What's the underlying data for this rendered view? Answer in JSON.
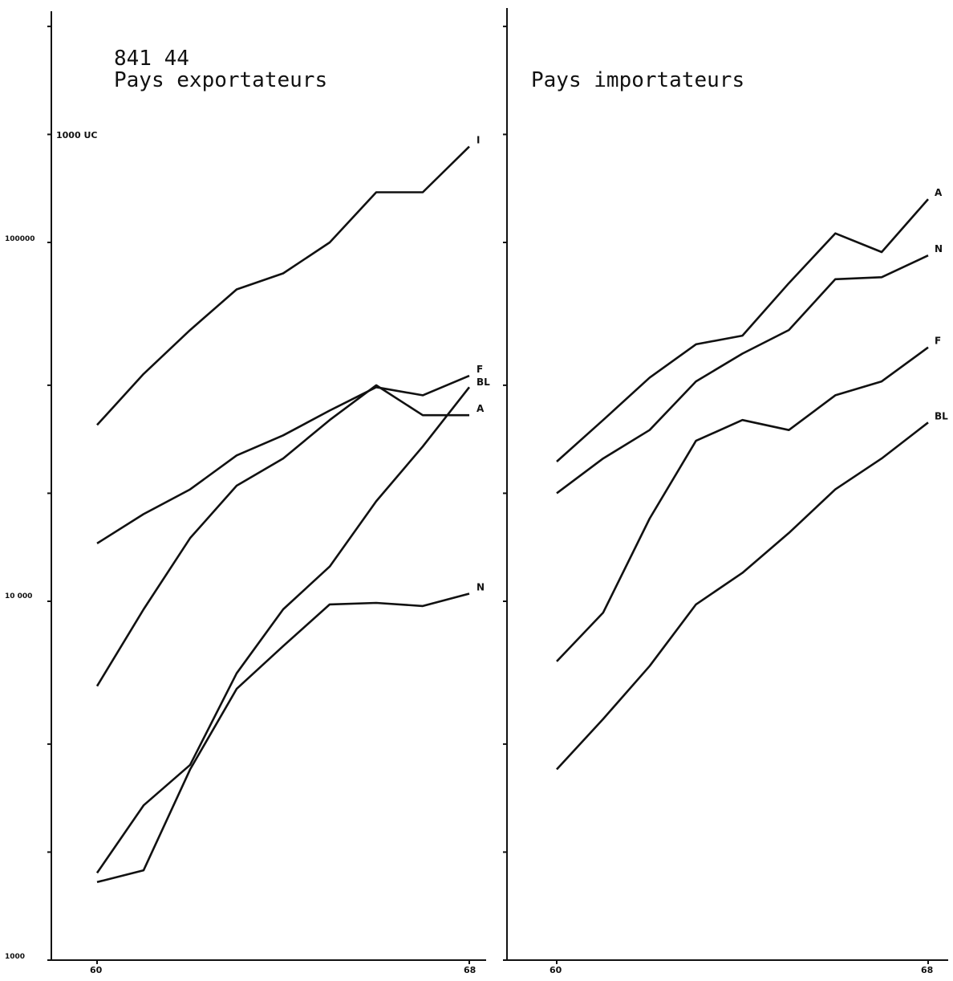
{
  "chart_data": [
    {
      "type": "line",
      "panel": "left",
      "code": "841 44",
      "title": "Pays exportateurs",
      "unit_label": "1000 UC",
      "yscale": "log",
      "ylim": [
        1000,
        1000000
      ],
      "y_tick_labels": [
        "1000",
        "10 000",
        "100000"
      ],
      "x_start_label": "60",
      "x_end_label": "68",
      "xlim": [
        1960,
        1968
      ],
      "x": [
        1960,
        1961,
        1962,
        1963,
        1964,
        1965,
        1966,
        1967,
        1968
      ],
      "series": [
        {
          "name": "I",
          "values": [
            31000,
            43000,
            57000,
            74000,
            82000,
            100000,
            138000,
            138000,
            185000
          ]
        },
        {
          "name": "F",
          "values": [
            14500,
            17500,
            20500,
            25500,
            29000,
            34000,
            39500,
            37500,
            42500
          ]
        },
        {
          "name": "A",
          "values": [
            5800,
            9500,
            15000,
            21000,
            25000,
            32000,
            40000,
            33000,
            33000
          ]
        },
        {
          "name": "BL",
          "values": [
            1750,
            2700,
            3500,
            6300,
            9500,
            12500,
            19000,
            27000,
            39500
          ]
        },
        {
          "name": "N",
          "values": [
            1650,
            1780,
            3400,
            5700,
            7500,
            9800,
            9900,
            9700,
            10500
          ]
        }
      ],
      "grid": false,
      "legend": "labels at line ends"
    },
    {
      "type": "line",
      "panel": "right",
      "title": "Pays importateurs",
      "yscale": "log",
      "x_start_label": "60",
      "x_end_label": "68",
      "xlim": [
        1960,
        1968
      ],
      "x": [
        1960,
        1961,
        1962,
        1963,
        1964,
        1965,
        1966,
        1967,
        1968
      ],
      "series": [
        {
          "name": "A",
          "values": [
            24500,
            32000,
            42000,
            52000,
            55000,
            77000,
            106000,
            94000,
            132000
          ]
        },
        {
          "name": "N",
          "values": [
            20000,
            25000,
            30000,
            41000,
            49000,
            57000,
            79000,
            80000,
            92000
          ]
        },
        {
          "name": "F",
          "values": [
            6800,
            9300,
            17000,
            28000,
            32000,
            30000,
            37500,
            41000,
            51000
          ]
        },
        {
          "name": "BL",
          "values": [
            3400,
            4700,
            6600,
            9800,
            12000,
            15500,
            20500,
            25000,
            31500
          ]
        }
      ],
      "grid": false,
      "legend": "labels at line ends"
    }
  ]
}
